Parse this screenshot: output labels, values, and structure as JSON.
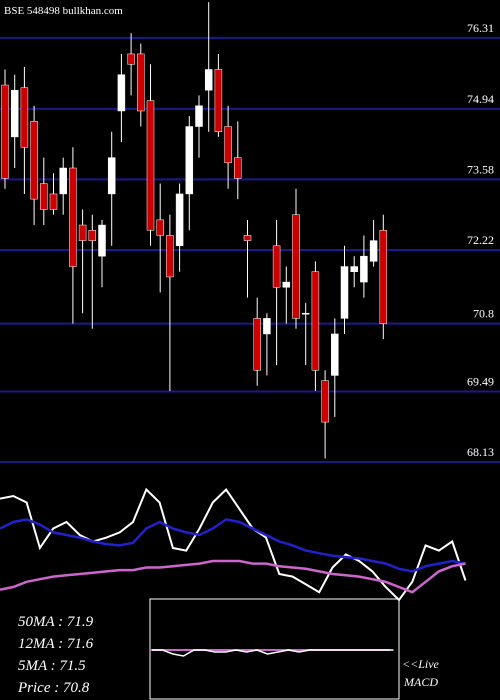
{
  "chart_data": {
    "type": "candlestick",
    "title": "BSE 548498 bullkhan.com",
    "open": [
      75.4,
      74.4,
      75.35,
      74.7,
      73.5,
      73.3,
      73.3,
      73.8,
      72.7,
      72.6,
      72.1,
      73.3,
      74.9,
      76.0,
      76.0,
      75.1,
      72.8,
      72.5,
      72.3,
      73.3,
      74.6,
      75.3,
      75.7,
      74.6,
      74.0,
      72.5,
      70.9,
      70.6,
      72.3,
      71.5,
      72.9,
      71.0,
      71.8,
      69.7,
      69.8,
      70.9,
      71.8,
      71.6,
      72.0,
      72.6
    ],
    "high": [
      75.7,
      75.6,
      75.75,
      75.0,
      74.0,
      73.7,
      74.0,
      74.2,
      73.0,
      72.9,
      72.8,
      74.5,
      76.0,
      76.4,
      76.2,
      75.8,
      73.5,
      72.9,
      73.5,
      74.8,
      75.2,
      77.0,
      76.0,
      75.0,
      74.7,
      72.8,
      71.3,
      71.0,
      72.8,
      71.9,
      73.4,
      71.2,
      72.0,
      69.9,
      70.9,
      72.3,
      72.1,
      72.5,
      72.8,
      72.9
    ],
    "low": [
      73.4,
      73.8,
      73.3,
      72.7,
      72.7,
      72.9,
      72.9,
      70.8,
      71.0,
      70.7,
      71.5,
      72.3,
      74.3,
      75.2,
      74.6,
      72.3,
      71.4,
      69.5,
      71.8,
      72.6,
      74.0,
      74.5,
      74.4,
      73.4,
      73.2,
      71.3,
      69.6,
      69.8,
      70.0,
      70.8,
      70.7,
      70.0,
      69.5,
      68.2,
      69.0,
      70.6,
      71.5,
      71.3,
      71.9,
      70.5
    ],
    "close": [
      73.6,
      75.3,
      74.2,
      73.2,
      73.0,
      73.0,
      73.8,
      71.9,
      72.4,
      72.4,
      72.7,
      74.0,
      75.6,
      75.8,
      74.9,
      72.6,
      72.5,
      71.7,
      73.3,
      74.6,
      75.0,
      75.7,
      74.5,
      73.9,
      73.6,
      72.4,
      69.9,
      70.9,
      71.5,
      71.6,
      70.9,
      71.0,
      69.9,
      68.9,
      70.6,
      71.9,
      71.9,
      72.1,
      72.4,
      70.8
    ],
    "up_color": "#ffffff",
    "down_color": "#cc0000",
    "ylim": [
      67.88,
      77.04
    ],
    "yticks": [
      76.31,
      74.94,
      73.58,
      72.22,
      70.8,
      69.49,
      68.13
    ],
    "grid_color": "#1a1a8a",
    "indicator_panel": {
      "ylim": [
        0,
        100
      ],
      "series": [
        {
          "color": "#ffffff",
          "values": [
            78,
            80,
            75,
            40,
            55,
            60,
            50,
            45,
            48,
            52,
            60,
            85,
            75,
            40,
            38,
            55,
            75,
            85,
            70,
            55,
            48,
            20,
            18,
            12,
            6,
            25,
            35,
            30,
            22,
            10,
            0,
            14,
            42,
            38,
            45,
            15
          ]
        },
        {
          "color": "#2222cc",
          "values": [
            55,
            60,
            62,
            58,
            52,
            50,
            48,
            45,
            43,
            42,
            44,
            55,
            60,
            55,
            52,
            50,
            55,
            62,
            60,
            55,
            50,
            45,
            42,
            38,
            36,
            34,
            33,
            32,
            30,
            28,
            24,
            22,
            26,
            28,
            30,
            28
          ]
        },
        {
          "color": "#cc66cc",
          "values": [
            8,
            10,
            14,
            16,
            18,
            19,
            20,
            21,
            22,
            23,
            23,
            25,
            25,
            26,
            27,
            28,
            30,
            30,
            30,
            28,
            28,
            26,
            25,
            24,
            22,
            20,
            19,
            18,
            16,
            14,
            10,
            6,
            14,
            22,
            26,
            28
          ]
        }
      ]
    },
    "macd": {
      "ylim": [
        -10,
        10
      ],
      "values": [
        0,
        0,
        -2,
        -3,
        0,
        0,
        -1,
        -1,
        0,
        -1,
        0,
        -2,
        -1,
        0,
        -1,
        0,
        0,
        0,
        0,
        0,
        0,
        0,
        0,
        0
      ]
    },
    "labels": [
      "50MA : 71.9",
      "12MA : 71.6",
      "5MA : 71.5",
      "Price  : 70.8"
    ],
    "live": "<<Live",
    "macd_label": "MACD"
  }
}
